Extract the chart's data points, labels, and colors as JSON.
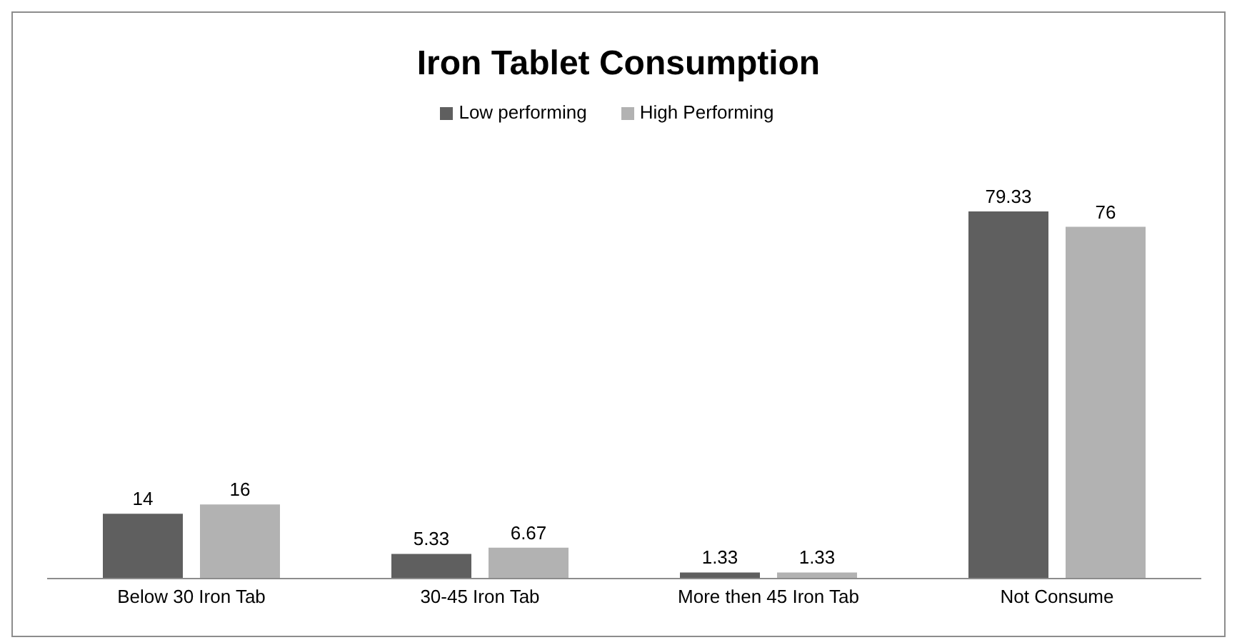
{
  "chart_data": {
    "type": "bar",
    "title": "Iron Tablet Consumption",
    "categories": [
      "Below 30 Iron Tab",
      "30-45 Iron Tab",
      "More then 45 Iron Tab",
      "Not Consume"
    ],
    "series": [
      {
        "name": "Low performing",
        "color": "#5f5f5f",
        "values": [
          14,
          5.33,
          1.33,
          79.33
        ]
      },
      {
        "name": "High Performing",
        "color": "#b2b2b2",
        "values": [
          16,
          6.67,
          1.33,
          76
        ]
      }
    ],
    "data_labels": true,
    "legend": "top",
    "grid": false
  }
}
